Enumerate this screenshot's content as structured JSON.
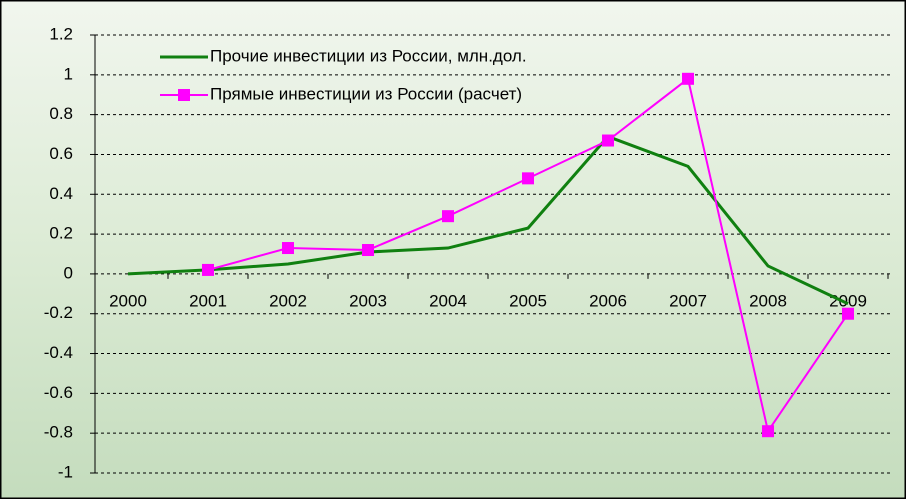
{
  "chart_data": {
    "type": "line",
    "categories": [
      "2000",
      "2001",
      "2002",
      "2003",
      "2004",
      "2005",
      "2006",
      "2007",
      "2008",
      "2009"
    ],
    "series": [
      {
        "name": "Прочие инвестиции из России, млн.дол.",
        "color": "#108010",
        "values": [
          0,
          0.02,
          0.05,
          0.11,
          0.13,
          0.23,
          0.69,
          0.54,
          0.04,
          -0.15
        ]
      },
      {
        "name": "Прямые инвестиции из России (расчет)",
        "color": "#ff00ff",
        "values": [
          null,
          0.02,
          0.13,
          0.12,
          0.29,
          0.48,
          0.67,
          0.98,
          -0.79,
          -0.2
        ]
      }
    ],
    "ylim": [
      -1,
      1.2
    ],
    "yticks": [
      -1,
      -0.8,
      -0.6,
      -0.4,
      -0.2,
      0,
      0.2,
      0.4,
      0.6,
      0.8,
      1,
      1.2
    ],
    "grid": true,
    "legend": "top-left"
  }
}
